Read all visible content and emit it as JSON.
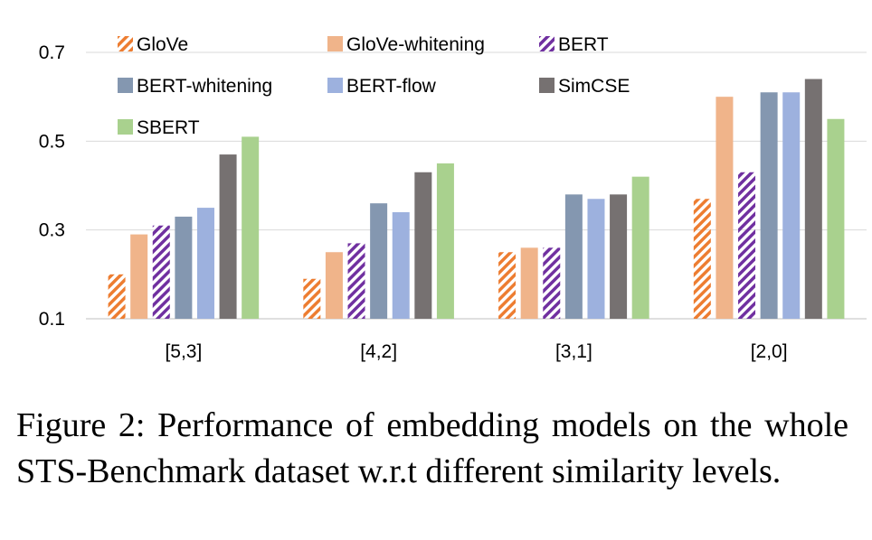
{
  "chart_data": {
    "type": "bar",
    "categories": [
      "[5,3]",
      "[4,2]",
      "[3,1]",
      "[2,0]"
    ],
    "ylim": [
      0.1,
      0.7
    ],
    "yticks": [
      "0.1",
      "0.3",
      "0.5",
      "0.7"
    ],
    "grid": true,
    "legend_placement": "top",
    "series": [
      {
        "name": "GloVe",
        "color": "#ED7D31",
        "pattern": "hatch-orange",
        "values": [
          0.2,
          0.19,
          0.25,
          0.37
        ]
      },
      {
        "name": "GloVe-whitening",
        "color": "#F0B48A",
        "pattern": "solid",
        "values": [
          0.29,
          0.25,
          0.26,
          0.6
        ]
      },
      {
        "name": "BERT",
        "color": "#7030A0",
        "pattern": "hatch-purple",
        "values": [
          0.31,
          0.27,
          0.26,
          0.43
        ]
      },
      {
        "name": "BERT-whitening",
        "color": "#8497B0",
        "pattern": "solid",
        "values": [
          0.33,
          0.36,
          0.38,
          0.61
        ]
      },
      {
        "name": "BERT-flow",
        "color": "#9DB1DE",
        "pattern": "solid",
        "values": [
          0.35,
          0.34,
          0.37,
          0.61
        ]
      },
      {
        "name": "SimCSE",
        "color": "#767171",
        "pattern": "solid",
        "values": [
          0.47,
          0.43,
          0.38,
          0.64
        ]
      },
      {
        "name": "SBERT",
        "color": "#A9D18E",
        "pattern": "solid",
        "values": [
          0.51,
          0.45,
          0.42,
          0.55
        ]
      }
    ]
  },
  "caption": "Figure 2: Performance of embedding models on the whole STS-Benchmark dataset w.r.t different similarity levels."
}
